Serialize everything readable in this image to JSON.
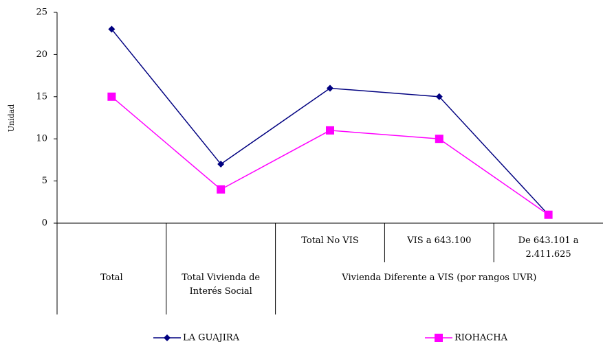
{
  "chart_data": {
    "type": "line",
    "y_label": "Unidad",
    "categories": [
      "Total",
      "Total Vivienda de Interés Social",
      "Total No VIS",
      "VIS a 643.100",
      "De 643.101 a 2.411.625"
    ],
    "category_groups": [
      {
        "name": "Vivienda Diferente a VIS (por rangos UVR)",
        "first": 2,
        "count": 3
      }
    ],
    "series": [
      {
        "name": "LA GUAJIRA",
        "color": "#000080",
        "marker": "diamond",
        "values": [
          23,
          7,
          16,
          15,
          1
        ]
      },
      {
        "name": "RIOHACHA",
        "color": "#ff00ff",
        "marker": "square",
        "values": [
          15,
          4,
          11,
          10,
          1
        ]
      }
    ],
    "ylim": [
      0,
      25
    ],
    "yticks": [
      0,
      5,
      10,
      15,
      20,
      25
    ],
    "legend": "bottom"
  }
}
